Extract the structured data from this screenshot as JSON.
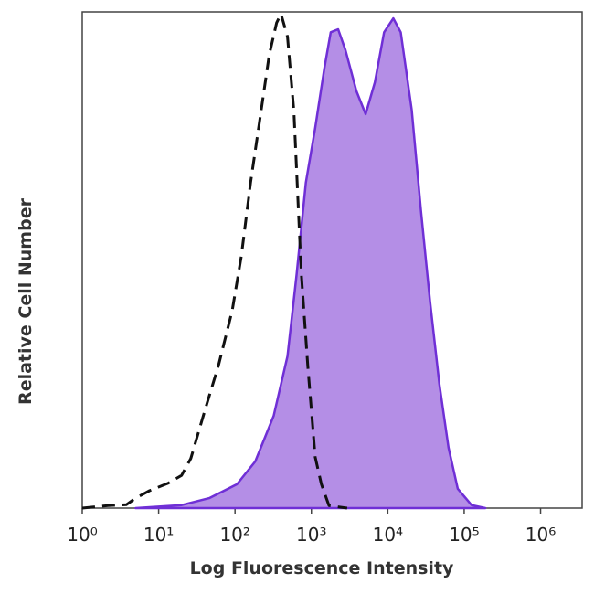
{
  "chart_data": {
    "type": "histogram-overlay",
    "x_label": "Log Fluorescence Intensity",
    "y_label": "Relative Cell Number",
    "x_log": true,
    "xlim": [
      1,
      3500000
    ],
    "ylim": [
      0,
      100
    ],
    "xticks": [
      {
        "value": 1,
        "label": "10⁰"
      },
      {
        "value": 10,
        "label": "10¹"
      },
      {
        "value": 100,
        "label": "10²"
      },
      {
        "value": 1000,
        "label": "10³"
      },
      {
        "value": 10000,
        "label": "10⁴"
      },
      {
        "value": 100000,
        "label": "10⁵"
      },
      {
        "value": 1000000,
        "label": "10⁶"
      }
    ],
    "series": [
      {
        "color": "#6f2fd6",
        "fill": "#b48ee6",
        "dashed": false,
        "x": [
          5,
          20,
          46,
          106,
          184,
          321,
          486,
          641,
          847,
          1120,
          1475,
          1790,
          2235,
          2790,
          3890,
          5130,
          6770,
          8950,
          11800,
          14750,
          20560,
          27150,
          35800,
          47300,
          62400,
          82400,
          124800,
          189300
        ],
        "values": [
          0,
          0.6,
          2.0,
          4.8,
          9.4,
          18.6,
          30.6,
          47.1,
          65.6,
          76.6,
          88.6,
          95.9,
          96.5,
          92.3,
          84.0,
          79.4,
          85.8,
          95.9,
          98.7,
          95.9,
          80.3,
          60.0,
          41.6,
          25.0,
          12.2,
          3.9,
          0.6,
          0
        ]
      },
      {
        "color": "#111111",
        "fill": "none",
        "dashed": true,
        "x": [
          1,
          2.17,
          3.79,
          5.0,
          7.58,
          13.2,
          20,
          26.4,
          40,
          60.6,
          92,
          121,
          160,
          212,
          280,
          350,
          400,
          486,
          590,
          740,
          896,
          1120,
          1350,
          1700,
          2940
        ],
        "values": [
          0,
          0.5,
          0.7,
          2,
          3.5,
          5,
          6.6,
          10,
          19.5,
          28.7,
          39.8,
          50.8,
          65.6,
          78.5,
          91.3,
          97.8,
          99.6,
          95,
          80,
          47,
          28.7,
          10.3,
          4.8,
          0.5,
          0
        ]
      }
    ]
  }
}
